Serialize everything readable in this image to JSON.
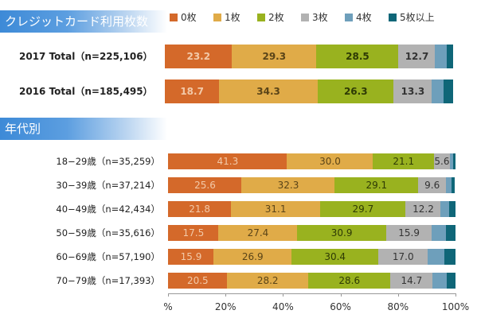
{
  "header1": "クレジットカード利用枚数",
  "header2": "年代別",
  "colors": [
    "#d4692a",
    "#e0ab48",
    "#99b21f",
    "#b2b2b2",
    "#6e9fbb",
    "#0f6678"
  ],
  "legend": [
    "0枚",
    "1枚",
    "2枚",
    "3枚",
    "4枚",
    "5枚以上"
  ],
  "chart_data": {
    "type": "bar",
    "orientation": "horizontal",
    "stacked": "100%",
    "categories": [
      "2017 Total（n=225,106）",
      "2016 Total（n=185,495）",
      "18−29歳（n=35,259）",
      "30−39歳（n=37,214）",
      "40−49歳（n=42,434）",
      "50−59歳（n=35,616）",
      "60−69歳（n=57,190）",
      "70−79歳（n=17,393）"
    ],
    "series": [
      {
        "name": "0枚",
        "values": [
          23.2,
          18.7,
          41.3,
          25.6,
          21.8,
          17.5,
          15.9,
          20.5
        ]
      },
      {
        "name": "1枚",
        "values": [
          29.3,
          34.3,
          30.0,
          32.3,
          31.1,
          27.4,
          26.9,
          28.2
        ]
      },
      {
        "name": "2枚",
        "values": [
          28.5,
          26.3,
          21.1,
          29.1,
          29.7,
          30.9,
          30.4,
          28.6
        ]
      },
      {
        "name": "3枚",
        "values": [
          12.7,
          13.3,
          5.6,
          9.6,
          12.2,
          15.9,
          17.0,
          14.7
        ]
      },
      {
        "name": "4枚",
        "values": [
          4.0,
          4.0,
          1.2,
          2.0,
          3.0,
          5.0,
          6.0,
          5.0
        ]
      },
      {
        "name": "5枚以上",
        "values": [
          2.3,
          3.4,
          0.8,
          1.0,
          2.2,
          3.3,
          3.8,
          3.0
        ]
      }
    ],
    "xlim": [
      0,
      100
    ],
    "xticks": [
      "%",
      "20%",
      "40%",
      "60%",
      "80%",
      "100%"
    ],
    "legend_position": "top"
  }
}
